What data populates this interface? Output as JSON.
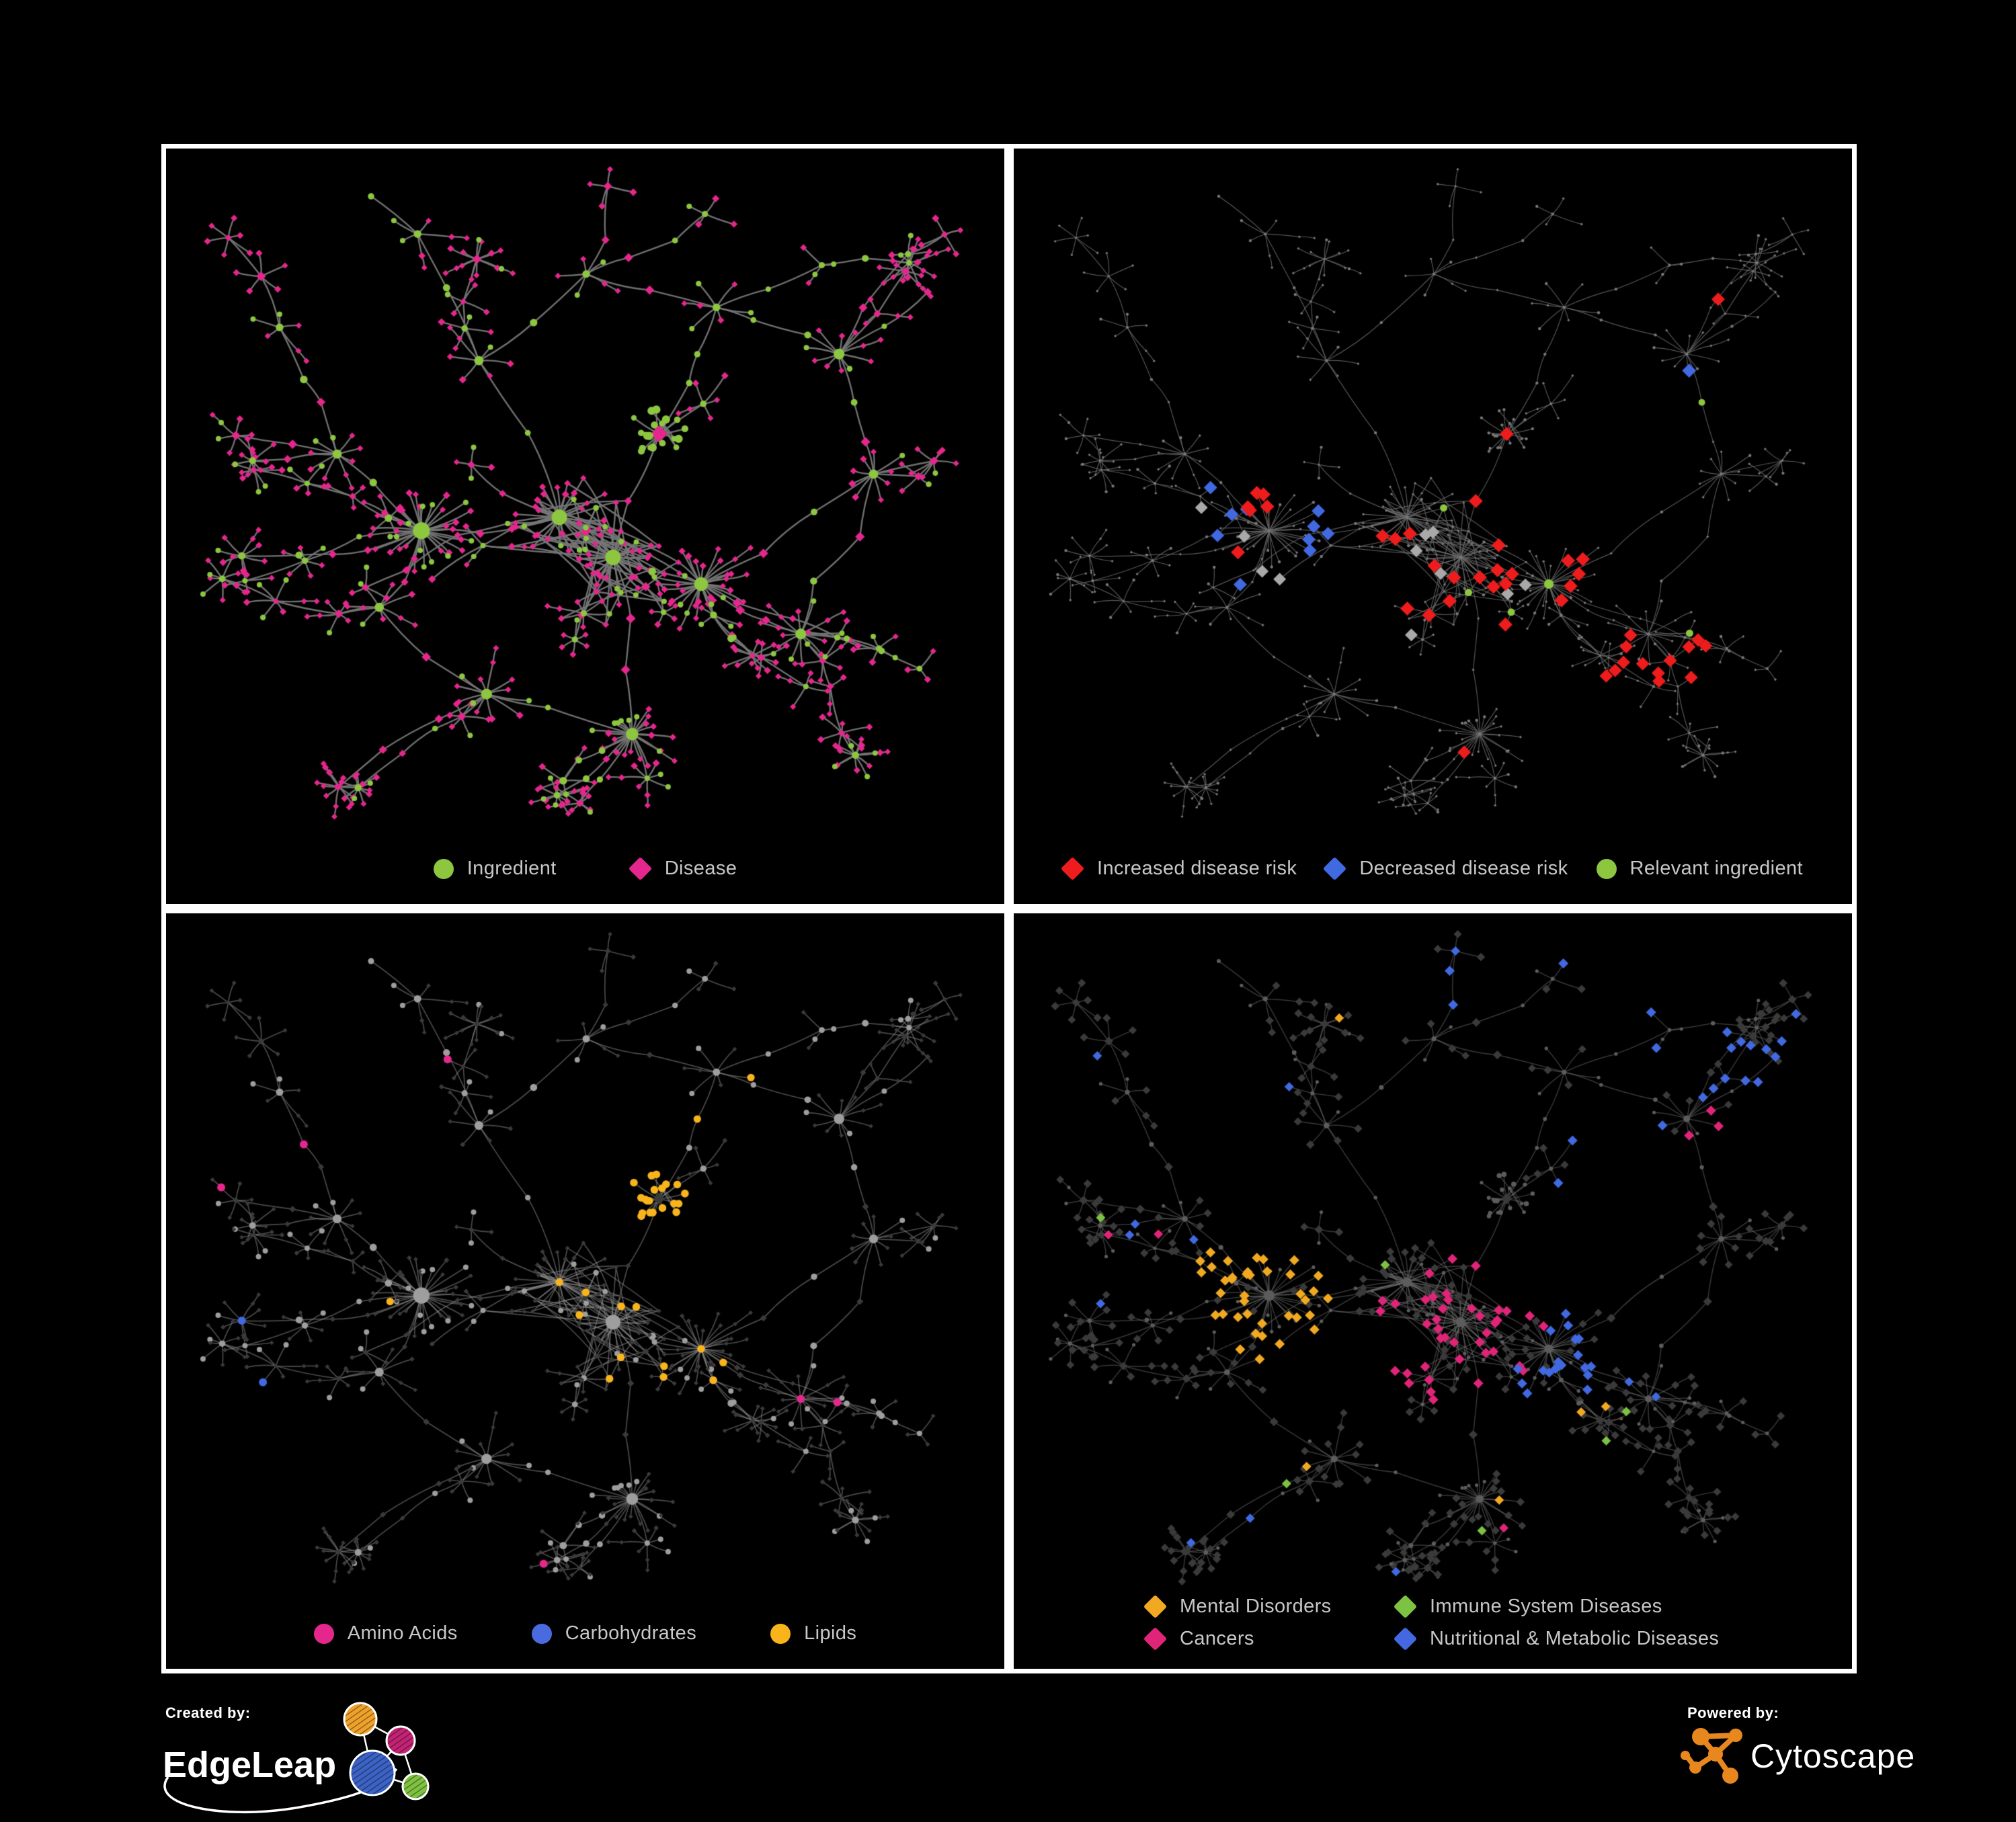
{
  "panels": [
    {
      "name": "ingredient-disease-network",
      "mode": "p1",
      "legend": [
        {
          "shape": "circle",
          "color": "#8DC63F",
          "label": "Ingredient"
        },
        {
          "shape": "diamond",
          "color": "#E5268D",
          "label": "Disease"
        }
      ],
      "style": {
        "edge": "rgba(118,118,118,0.95)",
        "edgeW": 2.4
      }
    },
    {
      "name": "disease-risk-network",
      "mode": "p2",
      "legend": [
        {
          "shape": "diamond",
          "color": "#EE1C1C",
          "label": "Increased disease risk"
        },
        {
          "shape": "diamond",
          "color": "#4169E1",
          "label": "Decreased disease risk"
        },
        {
          "shape": "circle",
          "color": "#8DC63F",
          "label": "Relevant ingredient"
        }
      ],
      "style": {
        "edge": "rgba(106,106,106,0.8)",
        "edgeW": 1.2
      }
    },
    {
      "name": "nutrient-class-network",
      "mode": "p3",
      "legend": [
        {
          "shape": "circle",
          "color": "#E5268D",
          "label": "Amino Acids"
        },
        {
          "shape": "circle",
          "color": "#4A6BDF",
          "label": "Carbohydrates"
        },
        {
          "shape": "circle",
          "color": "#F9B41C",
          "label": "Lipids"
        }
      ],
      "style": {
        "edge": "rgba(148,148,148,0.5)",
        "edgeW": 1.7
      }
    },
    {
      "name": "disease-category-network",
      "mode": "p4",
      "legend": [
        {
          "shape": "diamond",
          "color": "#F2A922",
          "label": "Mental Disorders"
        },
        {
          "shape": "diamond",
          "color": "#7DC242",
          "label": "Immune System Diseases"
        },
        {
          "shape": "diamond",
          "color": "#E02478",
          "label": "Cancers"
        },
        {
          "shape": "diamond",
          "color": "#4468E0",
          "label": "Nutritional & Metabolic Diseases"
        }
      ],
      "style": {
        "edge": "rgba(130,130,130,0.42)",
        "edgeW": 1.5
      }
    }
  ],
  "network": {
    "seed": 7,
    "colors": {
      "green": "#8DC63F",
      "pink": "#E5268D",
      "red": "#EE1C1C",
      "blue": "#4169E1",
      "silver": "#A9A9A9",
      "yellow": "#F9B41C",
      "orange": "#F2A922",
      "magenta": "#E02478",
      "immune": "#7DC242",
      "gray": "#9E9E9E",
      "dark": "#3A3A3A",
      "dim": "#787878",
      "ink": "#5C5C5C"
    }
  },
  "footer": {
    "created_label": "Created by:",
    "brand": "EdgeLeap",
    "powered_label": "Powered by:",
    "engine": "Cytoscape",
    "edgeleap_colors": {
      "orange": "#EFA22B",
      "magenta": "#C22373",
      "blue": "#3B62C4",
      "green": "#7FC241"
    },
    "cytoscape_orange": "#E8871E"
  }
}
